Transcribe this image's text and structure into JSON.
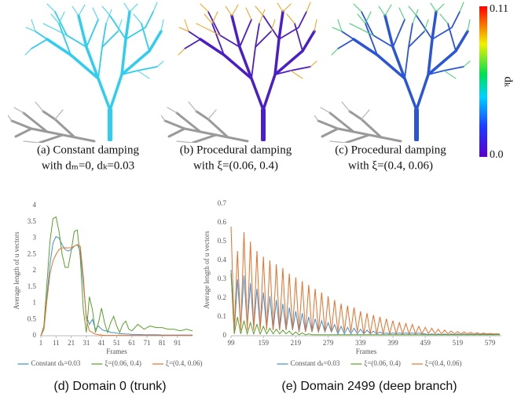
{
  "figure": {
    "captions": [
      {
        "lines": [
          "(a) Constant damping",
          "with dₘ=0, dₖ=0.03"
        ]
      },
      {
        "lines": [
          "(b) Procedural damping",
          "with ξ=(0.06, 0.4)"
        ]
      },
      {
        "lines": [
          "(c) Procedural damping",
          "with ξ=(0.4, 0.06)"
        ]
      }
    ],
    "colorbar": {
      "label": "dₖ",
      "ticks": [
        {
          "value": 0.11,
          "label": "0.11"
        },
        {
          "value": 0,
          "label": "0.0"
        }
      ]
    }
  },
  "chart_data": [
    {
      "type": "line",
      "caption": "(d) Domain 0 (trunk)",
      "x_label": "Frames",
      "y_label": "Average length of u vectors",
      "x": [
        1,
        3,
        5,
        7,
        9,
        11,
        13,
        15,
        17,
        19,
        21,
        23,
        25,
        27,
        29,
        31,
        33,
        35,
        37,
        39,
        41,
        43,
        45,
        47,
        49,
        51,
        53,
        55,
        57,
        59,
        61,
        65,
        69,
        73,
        77,
        81,
        85,
        89,
        93,
        97,
        101
      ],
      "xlim": [
        1,
        101
      ],
      "xticks": [
        1,
        11,
        21,
        31,
        41,
        51,
        61,
        71,
        81,
        91
      ],
      "ylim": [
        0,
        4
      ],
      "yticks": [
        0,
        0.5,
        1,
        1.5,
        2,
        2.5,
        3,
        3.5,
        4
      ],
      "legend": "bottom",
      "series": [
        {
          "name": "Constant dₖ=0.03",
          "color": "#3f8fd2",
          "values": [
            0,
            0.2,
            1.2,
            2.2,
            2.85,
            3.05,
            3.0,
            2.8,
            2.65,
            2.6,
            2.65,
            2.75,
            2.8,
            2.6,
            1.6,
            0.6,
            0.35,
            0.5,
            0.2,
            0.3,
            0.2,
            0.15,
            0.15,
            0.1,
            0.1,
            0.08,
            0.06,
            0.06,
            0.05,
            0.05,
            0.04,
            0.04,
            0.03,
            0.03,
            0.03,
            0.02,
            0.02,
            0.02,
            0.02,
            0.02,
            0.02
          ]
        },
        {
          "name": "ξ=(0.06, 0.4)",
          "color": "#5aa02c",
          "values": [
            0,
            0.3,
            1.6,
            2.9,
            3.6,
            3.65,
            3.2,
            2.5,
            2.1,
            2.1,
            2.6,
            3.2,
            3.25,
            2.4,
            0.8,
            0.1,
            1.2,
            0.8,
            0.1,
            0.4,
            0.85,
            0.4,
            0.1,
            0.4,
            0.6,
            0.3,
            0.1,
            0.35,
            0.45,
            0.2,
            0.15,
            0.35,
            0.2,
            0.3,
            0.25,
            0.25,
            0.2,
            0.2,
            0.15,
            0.2,
            0.15
          ]
        },
        {
          "name": "ξ=(0.4, 0.06)",
          "color": "#e8702a",
          "values": [
            0,
            0.2,
            1.1,
            1.9,
            2.3,
            2.5,
            2.65,
            2.7,
            2.7,
            2.7,
            2.7,
            2.75,
            2.8,
            2.75,
            1.8,
            0.5,
            0.15,
            0.1,
            0.05,
            0.03,
            0.02,
            0.01,
            0.01,
            0.01,
            0.01,
            0.01,
            0.01,
            0.01,
            0.01,
            0.01,
            0.01,
            0.01,
            0.01,
            0.01,
            0.01,
            0.01,
            0.01,
            0.01,
            0.01,
            0.01,
            0.01
          ]
        }
      ]
    },
    {
      "type": "line",
      "caption": "(e) Domain 2499 (deep branch)",
      "x_label": "Frames",
      "y_label": "Average length of u vectors",
      "x": [
        99,
        105,
        111,
        117,
        123,
        129,
        135,
        141,
        147,
        153,
        159,
        165,
        171,
        177,
        183,
        189,
        195,
        201,
        207,
        213,
        219,
        225,
        231,
        237,
        243,
        249,
        255,
        261,
        267,
        273,
        279,
        285,
        291,
        297,
        303,
        309,
        315,
        321,
        327,
        333,
        339,
        345,
        351,
        357,
        363,
        369,
        375,
        381,
        387,
        393,
        399,
        405,
        411,
        417,
        423,
        429,
        435,
        441,
        447,
        453,
        459,
        465,
        471,
        477,
        483,
        489,
        495,
        501,
        507,
        513,
        519,
        525,
        531,
        537,
        543,
        549,
        555,
        561,
        567,
        573,
        579,
        585,
        591,
        597
      ],
      "xlim": [
        99,
        600
      ],
      "xticks": [
        99,
        159,
        219,
        279,
        339,
        399,
        459,
        519,
        579
      ],
      "ylim": [
        0,
        0.7
      ],
      "yticks": [
        0,
        0.1,
        0.2,
        0.3,
        0.4,
        0.5,
        0.6,
        0.7
      ],
      "legend": "bottom",
      "series": [
        {
          "name": "Constant dₖ=0.03",
          "color": "#3f8fd2",
          "values": [
            0.35,
            0.02,
            0.3,
            0.05,
            0.32,
            0.05,
            0.28,
            0.04,
            0.25,
            0.04,
            0.23,
            0.04,
            0.21,
            0.03,
            0.19,
            0.03,
            0.17,
            0.03,
            0.15,
            0.03,
            0.13,
            0.02,
            0.12,
            0.02,
            0.1,
            0.02,
            0.09,
            0.02,
            0.08,
            0.02,
            0.07,
            0.02,
            0.06,
            0.01,
            0.05,
            0.01,
            0.045,
            0.01,
            0.04,
            0.01,
            0.035,
            0.01,
            0.03,
            0.01,
            0.025,
            0.01,
            0.02,
            0.01,
            0.015,
            0.01,
            0.015,
            0.01,
            0.015,
            0.01,
            0.015,
            0.01,
            0.015,
            0.01,
            0.015,
            0.01,
            0.01,
            0.005,
            0.01,
            0.005,
            0.01,
            0.005,
            0.01,
            0.005,
            0.01,
            0.005,
            0.01,
            0.005,
            0.01,
            0.005,
            0.01,
            0.005,
            0.01,
            0.005,
            0.01,
            0.005,
            0.01,
            0.005,
            0.01,
            0.005
          ]
        },
        {
          "name": "ξ=(0.06, 0.4)",
          "color": "#5aa02c",
          "values": [
            0.33,
            0.01,
            0.1,
            0.01,
            0.08,
            0.01,
            0.07,
            0.01,
            0.06,
            0.01,
            0.05,
            0.01,
            0.04,
            0.01,
            0.035,
            0.01,
            0.03,
            0.01,
            0.025,
            0.005,
            0.02,
            0.005,
            0.015,
            0.005,
            0.01,
            0.005,
            0.005,
            0.005,
            0.005,
            0.005,
            0.005,
            0.005,
            0.005,
            0.005,
            0.005,
            0.005,
            0.005,
            0.005,
            0.005,
            0.005,
            0.005,
            0.005,
            0.005,
            0.005,
            0.005,
            0.005,
            0.005,
            0.005,
            0.005,
            0.005,
            0.005,
            0.005,
            0.005,
            0.005,
            0.005,
            0.005,
            0.005,
            0.005,
            0.005,
            0.005,
            0.005,
            0.005,
            0.005,
            0.005,
            0.005,
            0.005,
            0.005,
            0.005,
            0.005,
            0.005,
            0.005,
            0.005,
            0.005,
            0.005,
            0.005,
            0.005,
            0.005,
            0.005,
            0.005,
            0.005,
            0.005,
            0.005,
            0.005,
            0.005
          ]
        },
        {
          "name": "ξ=(0.4, 0.06)",
          "color": "#e8702a",
          "values": [
            0.58,
            0.03,
            0.45,
            0.03,
            0.55,
            0.03,
            0.5,
            0.03,
            0.45,
            0.03,
            0.42,
            0.03,
            0.4,
            0.03,
            0.38,
            0.03,
            0.36,
            0.03,
            0.33,
            0.03,
            0.31,
            0.02,
            0.29,
            0.02,
            0.27,
            0.02,
            0.25,
            0.02,
            0.23,
            0.02,
            0.21,
            0.02,
            0.19,
            0.02,
            0.17,
            0.02,
            0.16,
            0.02,
            0.15,
            0.02,
            0.13,
            0.01,
            0.12,
            0.01,
            0.11,
            0.01,
            0.1,
            0.01,
            0.09,
            0.01,
            0.08,
            0.01,
            0.07,
            0.01,
            0.065,
            0.01,
            0.06,
            0.01,
            0.05,
            0.01,
            0.045,
            0.01,
            0.04,
            0.01,
            0.035,
            0.01,
            0.03,
            0.01,
            0.025,
            0.01,
            0.022,
            0.01,
            0.02,
            0.01,
            0.018,
            0.01,
            0.016,
            0.01,
            0.014,
            0.01,
            0.012,
            0.01,
            0.01,
            0.01
          ]
        }
      ]
    }
  ]
}
